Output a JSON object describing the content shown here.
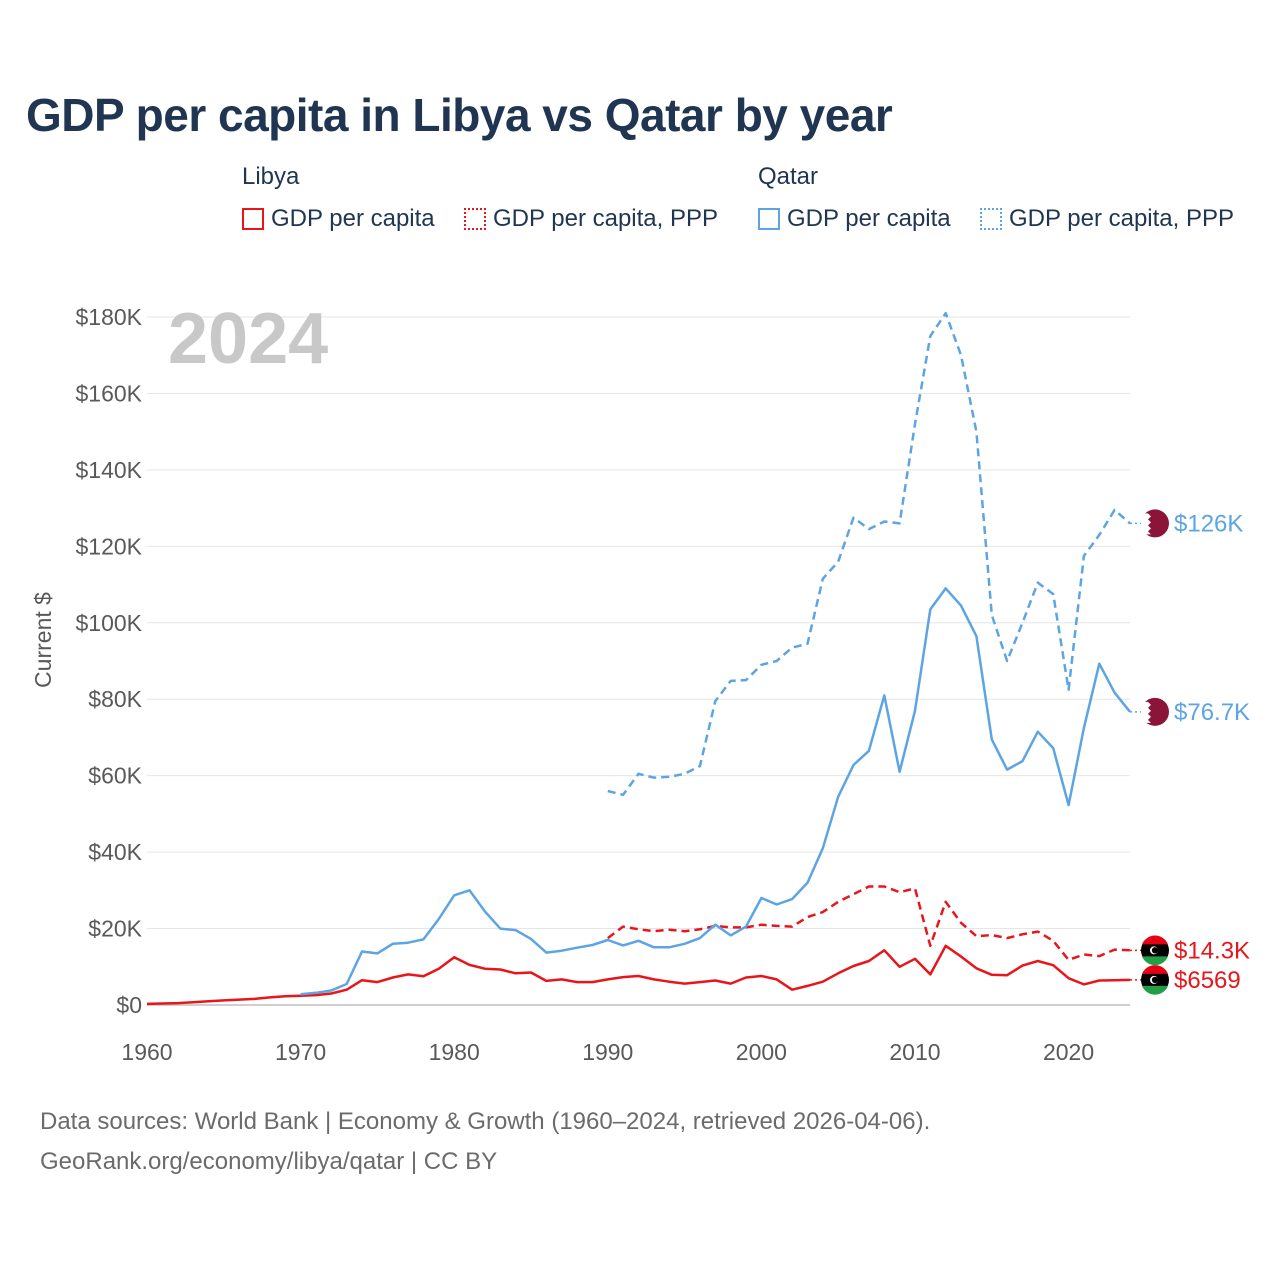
{
  "title": "GDP per capita in Libya vs Qatar by year",
  "legend": {
    "groups": [
      {
        "name": "Libya",
        "items": [
          "GDP per capita",
          "GDP per capita, PPP"
        ]
      },
      {
        "name": "Qatar",
        "items": [
          "GDP per capita",
          "GDP per capita, PPP"
        ]
      }
    ]
  },
  "footer": {
    "line1": "Data sources: World Bank | Economy & Growth (1960–2024, retrieved 2026-04-06).",
    "line2": "GeoRank.org/economy/libya/qatar | CC BY"
  },
  "colors": {
    "libya": "#e8161b",
    "qatar": "#5da4e3",
    "qatar_flag": "#8a1538"
  },
  "chart_data": {
    "type": "line",
    "title": "GDP per capita in Libya vs Qatar by year",
    "year_stamp": "2024",
    "ylabel": "Current $",
    "xlabel": "",
    "xlim": [
      1960,
      2024
    ],
    "ylim": [
      0,
      180000
    ],
    "x_ticks": [
      1960,
      1970,
      1980,
      1990,
      2000,
      2010,
      2020
    ],
    "x_tick_labels": [
      "1960",
      "1970",
      "1980",
      "1990",
      "2000",
      "2010",
      "2020"
    ],
    "y_ticks": [
      0,
      20000,
      40000,
      60000,
      80000,
      100000,
      120000,
      140000,
      160000,
      180000
    ],
    "y_tick_labels": [
      "$0",
      "$20K",
      "$40K",
      "$60K",
      "$80K",
      "$100K",
      "$120K",
      "$140K",
      "$160K",
      "$180K"
    ],
    "grid": true,
    "series": [
      {
        "name": "Libya GDP per capita",
        "country": "libya",
        "style": "solid",
        "end_label": "$6569",
        "x": [
          1960,
          1961,
          1962,
          1963,
          1964,
          1965,
          1966,
          1967,
          1968,
          1969,
          1970,
          1971,
          1972,
          1973,
          1974,
          1975,
          1976,
          1977,
          1978,
          1979,
          1980,
          1981,
          1982,
          1983,
          1984,
          1985,
          1986,
          1987,
          1988,
          1989,
          1990,
          1991,
          1992,
          1993,
          1994,
          1995,
          1996,
          1997,
          1998,
          1999,
          2000,
          2001,
          2002,
          2003,
          2004,
          2005,
          2006,
          2007,
          2008,
          2009,
          2010,
          2011,
          2012,
          2013,
          2014,
          2015,
          2016,
          2017,
          2018,
          2019,
          2020,
          2021,
          2022,
          2023,
          2024
        ],
        "values": [
          300,
          400,
          500,
          700,
          1000,
          1200,
          1400,
          1600,
          2000,
          2300,
          2400,
          2600,
          3000,
          4000,
          6500,
          6000,
          7200,
          8000,
          7500,
          9500,
          12500,
          10500,
          9500,
          9300,
          8300,
          8500,
          6300,
          6700,
          6000,
          6000,
          6700,
          7300,
          7600,
          6700,
          6100,
          5600,
          6000,
          6400,
          5600,
          7200,
          7600,
          6700,
          4000,
          5000,
          6100,
          8300,
          10200,
          11500,
          14300,
          10000,
          12100,
          8000,
          15500,
          12700,
          9600,
          7900,
          7800,
          10300,
          11500,
          10400,
          7000,
          5400,
          6400,
          6500,
          6569
        ]
      },
      {
        "name": "Libya GDP per capita, PPP",
        "country": "libya",
        "style": "dashed",
        "end_label": "$14.3K",
        "x": [
          1990,
          1991,
          1992,
          1993,
          1994,
          1995,
          1996,
          1997,
          1998,
          1999,
          2000,
          2001,
          2002,
          2003,
          2004,
          2005,
          2006,
          2007,
          2008,
          2009,
          2010,
          2011,
          2012,
          2013,
          2014,
          2015,
          2016,
          2017,
          2018,
          2019,
          2020,
          2021,
          2022,
          2023,
          2024
        ],
        "values": [
          17500,
          20500,
          19800,
          19300,
          19700,
          19300,
          19800,
          20700,
          20300,
          20300,
          21000,
          20700,
          20500,
          23000,
          24300,
          27000,
          29000,
          31000,
          31000,
          29500,
          30500,
          15500,
          27000,
          21500,
          18000,
          18300,
          17500,
          18500,
          19200,
          16800,
          11800,
          13200,
          12800,
          14500,
          14300
        ]
      },
      {
        "name": "Qatar GDP per capita",
        "country": "qatar",
        "style": "solid",
        "end_label": "$76.7K",
        "x": [
          1970,
          1971,
          1972,
          1973,
          1974,
          1975,
          1976,
          1977,
          1978,
          1979,
          1980,
          1981,
          1982,
          1983,
          1984,
          1985,
          1986,
          1987,
          1988,
          1989,
          1990,
          1991,
          1992,
          1993,
          1994,
          1995,
          1996,
          1997,
          1998,
          1999,
          2000,
          2001,
          2002,
          2003,
          2004,
          2005,
          2006,
          2007,
          2008,
          2009,
          2010,
          2011,
          2012,
          2013,
          2014,
          2015,
          2016,
          2017,
          2018,
          2019,
          2020,
          2021,
          2022,
          2023,
          2024
        ],
        "values": [
          2800,
          3200,
          3800,
          5500,
          14000,
          13500,
          16000,
          16300,
          17200,
          22500,
          28700,
          30000,
          24500,
          20000,
          19600,
          17300,
          13700,
          14200,
          15000,
          15700,
          17000,
          15600,
          16800,
          15100,
          15100,
          16000,
          17500,
          21000,
          18200,
          20500,
          28000,
          26300,
          27700,
          32000,
          41000,
          54500,
          62800,
          66500,
          81000,
          61000,
          77000,
          103500,
          109000,
          104500,
          96500,
          69500,
          61600,
          63800,
          71500,
          67200,
          52300,
          72500,
          89300,
          81700,
          76700
        ]
      },
      {
        "name": "Qatar GDP per capita, PPP",
        "country": "qatar",
        "style": "dashed",
        "end_label": "$126K",
        "x": [
          1990,
          1991,
          1992,
          1993,
          1994,
          1995,
          1996,
          1997,
          1998,
          1999,
          2000,
          2001,
          2002,
          2003,
          2004,
          2005,
          2006,
          2007,
          2008,
          2009,
          2010,
          2011,
          2012,
          2013,
          2014,
          2015,
          2016,
          2017,
          2018,
          2019,
          2020,
          2021,
          2022,
          2023,
          2024
        ],
        "values": [
          56000,
          55000,
          60500,
          59500,
          59700,
          60500,
          62500,
          79500,
          84800,
          85000,
          89000,
          90000,
          93500,
          94500,
          111500,
          116000,
          127500,
          124500,
          126500,
          126000,
          152000,
          175000,
          181000,
          170000,
          150000,
          102000,
          90000,
          100000,
          110500,
          107500,
          82500,
          117500,
          123000,
          129500,
          126000
        ]
      }
    ]
  }
}
